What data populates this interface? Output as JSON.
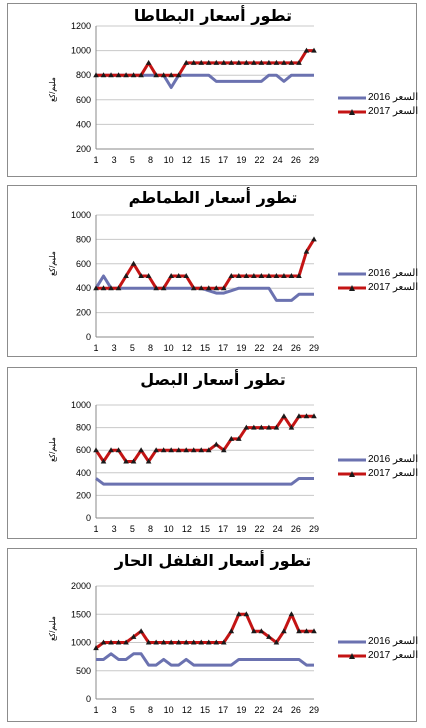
{
  "colors": {
    "s2016": "#6b72b0",
    "s2017": "#c41414",
    "marker": "#1a1a1a",
    "gridline": "#c8c8c8",
    "frame": "#8c8c8c"
  },
  "chart_data": [
    {
      "type": "line",
      "title": "تطور أسعار البطاطا",
      "ylabel": "مليم/كغ",
      "ylim": [
        200,
        1200
      ],
      "yticks": [
        200,
        400,
        600,
        800,
        1000,
        1200
      ],
      "x": [
        1,
        2,
        3,
        4,
        5,
        6,
        7,
        8,
        9,
        10,
        11,
        12,
        13,
        14,
        15,
        16,
        17,
        18,
        19,
        20,
        21,
        22,
        23,
        24,
        25,
        26,
        27,
        28,
        29,
        30
      ],
      "xtick_labels": [
        "1",
        "3",
        "5",
        "8",
        "10",
        "12",
        "15",
        "17",
        "19",
        "22",
        "24",
        "26",
        "29"
      ],
      "xtick_positions": [
        1,
        3,
        5,
        7,
        9,
        11,
        13,
        15,
        17,
        19,
        21,
        23,
        25
      ],
      "grid": true,
      "legend": "right",
      "series": [
        {
          "name": "2016 السعر",
          "values": [
            800,
            800,
            800,
            800,
            800,
            800,
            800,
            800,
            800,
            800,
            700,
            800,
            800,
            800,
            800,
            800,
            750,
            750,
            750,
            750,
            750,
            750,
            750,
            800,
            800,
            750,
            800,
            800,
            800,
            800
          ]
        },
        {
          "name": "2017 السعر",
          "values": [
            800,
            800,
            800,
            800,
            800,
            800,
            800,
            900,
            800,
            800,
            800,
            800,
            900,
            900,
            900,
            900,
            900,
            900,
            900,
            900,
            900,
            900,
            900,
            900,
            900,
            900,
            900,
            900,
            1000,
            1000
          ]
        }
      ]
    },
    {
      "type": "line",
      "title": "تطور أسعار الطماطم",
      "ylabel": "مليم/كغ",
      "ylim": [
        0,
        1000
      ],
      "yticks": [
        0,
        200,
        400,
        600,
        800,
        1000
      ],
      "x": [
        1,
        2,
        3,
        4,
        5,
        6,
        7,
        8,
        9,
        10,
        11,
        12,
        13,
        14,
        15,
        16,
        17,
        18,
        19,
        20,
        21,
        22,
        23,
        24,
        25,
        26,
        27,
        28,
        29,
        30
      ],
      "xtick_labels": [
        "1",
        "3",
        "5",
        "8",
        "10",
        "12",
        "15",
        "17",
        "19",
        "22",
        "24",
        "26",
        "29"
      ],
      "xtick_positions": [
        1,
        3,
        5,
        7,
        9,
        11,
        13,
        15,
        17,
        19,
        21,
        23,
        25
      ],
      "grid": true,
      "legend": "right",
      "series": [
        {
          "name": "2016 السعر",
          "values": [
            400,
            500,
            400,
            400,
            400,
            400,
            400,
            400,
            400,
            400,
            400,
            400,
            400,
            400,
            400,
            380,
            360,
            360,
            380,
            400,
            400,
            400,
            400,
            400,
            300,
            300,
            300,
            350,
            350,
            350
          ]
        },
        {
          "name": "2017 السعر",
          "values": [
            400,
            400,
            400,
            400,
            500,
            600,
            500,
            500,
            400,
            400,
            500,
            500,
            500,
            400,
            400,
            400,
            400,
            400,
            500,
            500,
            500,
            500,
            500,
            500,
            500,
            500,
            500,
            500,
            700,
            800
          ]
        }
      ]
    },
    {
      "type": "line",
      "title": "تطور أسعار البصل",
      "ylabel": "مليم/كغ",
      "ylim": [
        0,
        1000
      ],
      "yticks": [
        0,
        200,
        400,
        600,
        800,
        1000
      ],
      "x": [
        1,
        2,
        3,
        4,
        5,
        6,
        7,
        8,
        9,
        10,
        11,
        12,
        13,
        14,
        15,
        16,
        17,
        18,
        19,
        20,
        21,
        22,
        23,
        24,
        25,
        26,
        27,
        28,
        29,
        30
      ],
      "xtick_labels": [
        "1",
        "3",
        "5",
        "8",
        "10",
        "12",
        "15",
        "17",
        "19",
        "22",
        "24",
        "26",
        "29"
      ],
      "xtick_positions": [
        1,
        3,
        5,
        7,
        9,
        11,
        13,
        15,
        17,
        19,
        21,
        23,
        25
      ],
      "grid": true,
      "legend": "right",
      "series": [
        {
          "name": "2016 السعر",
          "values": [
            350,
            300,
            300,
            300,
            300,
            300,
            300,
            300,
            300,
            300,
            300,
            300,
            300,
            300,
            300,
            300,
            300,
            300,
            300,
            300,
            300,
            300,
            300,
            300,
            300,
            300,
            300,
            350,
            350,
            350
          ]
        },
        {
          "name": "2017 السعر",
          "values": [
            600,
            500,
            600,
            600,
            500,
            500,
            600,
            500,
            600,
            600,
            600,
            600,
            600,
            600,
            600,
            600,
            650,
            600,
            700,
            700,
            800,
            800,
            800,
            800,
            800,
            900,
            800,
            900,
            900,
            900
          ]
        }
      ]
    },
    {
      "type": "line",
      "title": "تطور أسعار الفلفل الحار",
      "ylabel": "مليم/كغ",
      "ylim": [
        0,
        2000
      ],
      "yticks": [
        0,
        500,
        1000,
        1500,
        2000
      ],
      "x": [
        1,
        2,
        3,
        4,
        5,
        6,
        7,
        8,
        9,
        10,
        11,
        12,
        13,
        14,
        15,
        16,
        17,
        18,
        19,
        20,
        21,
        22,
        23,
        24,
        25,
        26,
        27,
        28,
        29,
        30
      ],
      "xtick_labels": [
        "1",
        "3",
        "5",
        "8",
        "10",
        "12",
        "15",
        "17",
        "19",
        "22",
        "24",
        "26",
        "29"
      ],
      "xtick_positions": [
        1,
        3,
        5,
        7,
        9,
        11,
        13,
        15,
        17,
        19,
        21,
        23,
        25
      ],
      "grid": true,
      "legend": "right",
      "series": [
        {
          "name": "السعر 2016",
          "values": [
            700,
            700,
            800,
            700,
            700,
            800,
            800,
            600,
            600,
            700,
            600,
            600,
            700,
            600,
            600,
            600,
            600,
            600,
            600,
            700,
            700,
            700,
            700,
            700,
            700,
            700,
            700,
            700,
            600,
            600
          ]
        },
        {
          "name": "2017 السعر",
          "values": [
            900,
            1000,
            1000,
            1000,
            1000,
            1100,
            1200,
            1000,
            1000,
            1000,
            1000,
            1000,
            1000,
            1000,
            1000,
            1000,
            1000,
            1000,
            1200,
            1500,
            1500,
            1200,
            1200,
            1100,
            1000,
            1200,
            1500,
            1200,
            1200,
            1200
          ]
        }
      ]
    }
  ]
}
